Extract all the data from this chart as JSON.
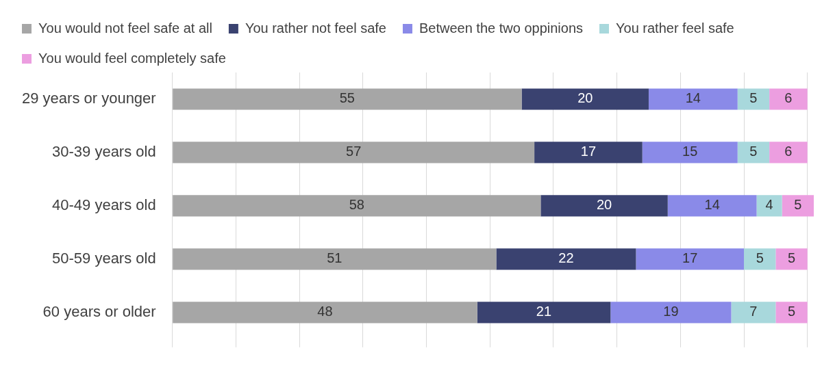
{
  "chart_data": {
    "type": "bar",
    "orientation": "horizontal",
    "stacked": true,
    "categories": [
      "29 years or younger",
      "30-39 years old",
      "40-49 years old",
      "50-59 years old",
      "60 years or older"
    ],
    "series": [
      {
        "name": "You would not feel safe at all",
        "color": "#a6a6a6",
        "values": [
          55,
          57,
          58,
          51,
          48
        ]
      },
      {
        "name": "You rather not feel safe",
        "color": "#3a4270",
        "values": [
          20,
          17,
          20,
          22,
          21
        ]
      },
      {
        "name": "Between the two oppinions",
        "color": "#8a8ae8",
        "values": [
          14,
          15,
          14,
          17,
          19
        ]
      },
      {
        "name": "You rather feel safe",
        "color": "#a8d8dc",
        "values": [
          5,
          5,
          4,
          5,
          7
        ]
      },
      {
        "name": "You would feel completely safe",
        "color": "#ec9ee0",
        "values": [
          6,
          6,
          5,
          5,
          5
        ]
      }
    ],
    "xlim": [
      0,
      101
    ],
    "xticks": [
      {
        "value": 0,
        "label": null
      },
      {
        "value": 10,
        "label": null
      },
      {
        "value": 20,
        "label": null
      },
      {
        "value": 30,
        "label": null
      },
      {
        "value": 40,
        "label": null
      },
      {
        "value": 50,
        "label": null
      },
      {
        "value": 60,
        "label": null
      },
      {
        "value": 70,
        "label": null
      },
      {
        "value": 80,
        "label": null
      },
      {
        "value": 90,
        "label": null
      },
      {
        "value": 100,
        "label": null
      }
    ],
    "grid": "x",
    "legend": "top",
    "data_labels": true,
    "tick_labels": "y"
  }
}
